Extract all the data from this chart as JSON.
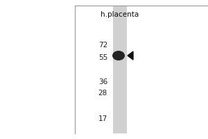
{
  "bg_color": "#ffffff",
  "outer_bg": "#ffffff",
  "lane_color": "#cccccc",
  "band_color": "#111111",
  "arrow_color": "#111111",
  "mw_markers": [
    72,
    55,
    36,
    28,
    17
  ],
  "lane_label": "h.placenta",
  "band_mw": 57,
  "fig_width": 3.0,
  "fig_height": 2.0,
  "dpi": 100,
  "left_border_color": "#888888",
  "top_border_color": "#888888"
}
